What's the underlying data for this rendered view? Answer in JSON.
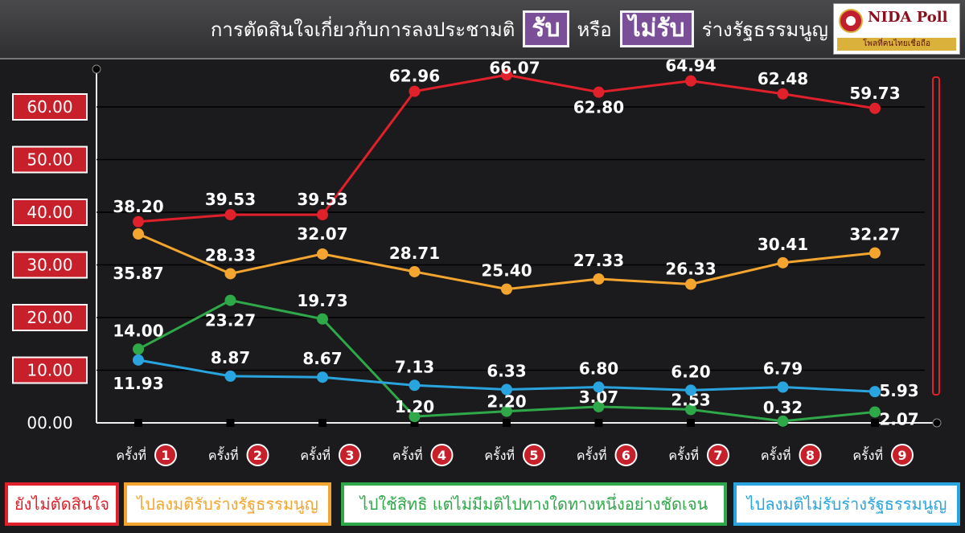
{
  "header": {
    "title_prefix": "การตัดสินใจเกี่ยวกับการลงประชามติ",
    "box1": "รับ",
    "connector": "หรือ",
    "box2": "ไม่รับ",
    "title_suffix": "ร่างรัฐธรรมนูญ",
    "logo_name": "NIDA Poll",
    "logo_tagline": "โพลที่คนไทยเชื่อถือ"
  },
  "chart_data": {
    "type": "line",
    "x_prefix": "ครั้งที่",
    "categories": [
      "1",
      "2",
      "3",
      "4",
      "5",
      "6",
      "7",
      "8",
      "9"
    ],
    "y_ticks": [
      "00.00",
      "10.00",
      "20.00",
      "30.00",
      "40.00",
      "50.00",
      "60.00"
    ],
    "ylim": [
      0,
      70
    ],
    "grid": true,
    "legend_position": "bottom",
    "series": [
      {
        "name": "ยังไม่ตัดสินใจ",
        "color": "#e0202a",
        "values": [
          38.2,
          39.53,
          39.53,
          62.96,
          66.07,
          62.8,
          64.94,
          62.48,
          59.73
        ],
        "labels": [
          "38.20",
          "39.53",
          "39.53",
          "62.96",
          "66.07",
          "62.80",
          "64.94",
          "62.48",
          "59.73"
        ]
      },
      {
        "name": "ไปลงมติรับร่างรัฐธรรมนูญ",
        "color": "#f3a52f",
        "values": [
          35.87,
          28.33,
          32.07,
          28.71,
          25.4,
          27.33,
          26.33,
          30.41,
          32.27
        ],
        "labels": [
          "35.87",
          "28.33",
          "32.07",
          "28.71",
          "25.40",
          "27.33",
          "26.33",
          "30.41",
          "32.27"
        ]
      },
      {
        "name": "ไปใช้สิทธิ แต่ไม่มีมติไปทางใดทางหนึ่งอย่างชัดเจน",
        "color": "#2fa84a",
        "values": [
          14.0,
          23.27,
          19.73,
          1.2,
          2.2,
          3.07,
          2.53,
          0.32,
          2.07
        ],
        "labels": [
          "14.00",
          "23.27",
          "19.73",
          "1.20",
          "2.20",
          "3.07",
          "2.53",
          "0.32",
          "2.07"
        ]
      },
      {
        "name": "ไปลงมติไม่รับร่างรัฐธรรมนูญ",
        "color": "#2aa4de",
        "values": [
          11.93,
          8.87,
          8.67,
          7.13,
          6.33,
          6.8,
          6.2,
          6.79,
          5.93
        ],
        "labels": [
          "11.93",
          "8.87",
          "8.67",
          "7.13",
          "6.33",
          "6.80",
          "6.20",
          "6.79",
          "5.93"
        ]
      }
    ]
  }
}
